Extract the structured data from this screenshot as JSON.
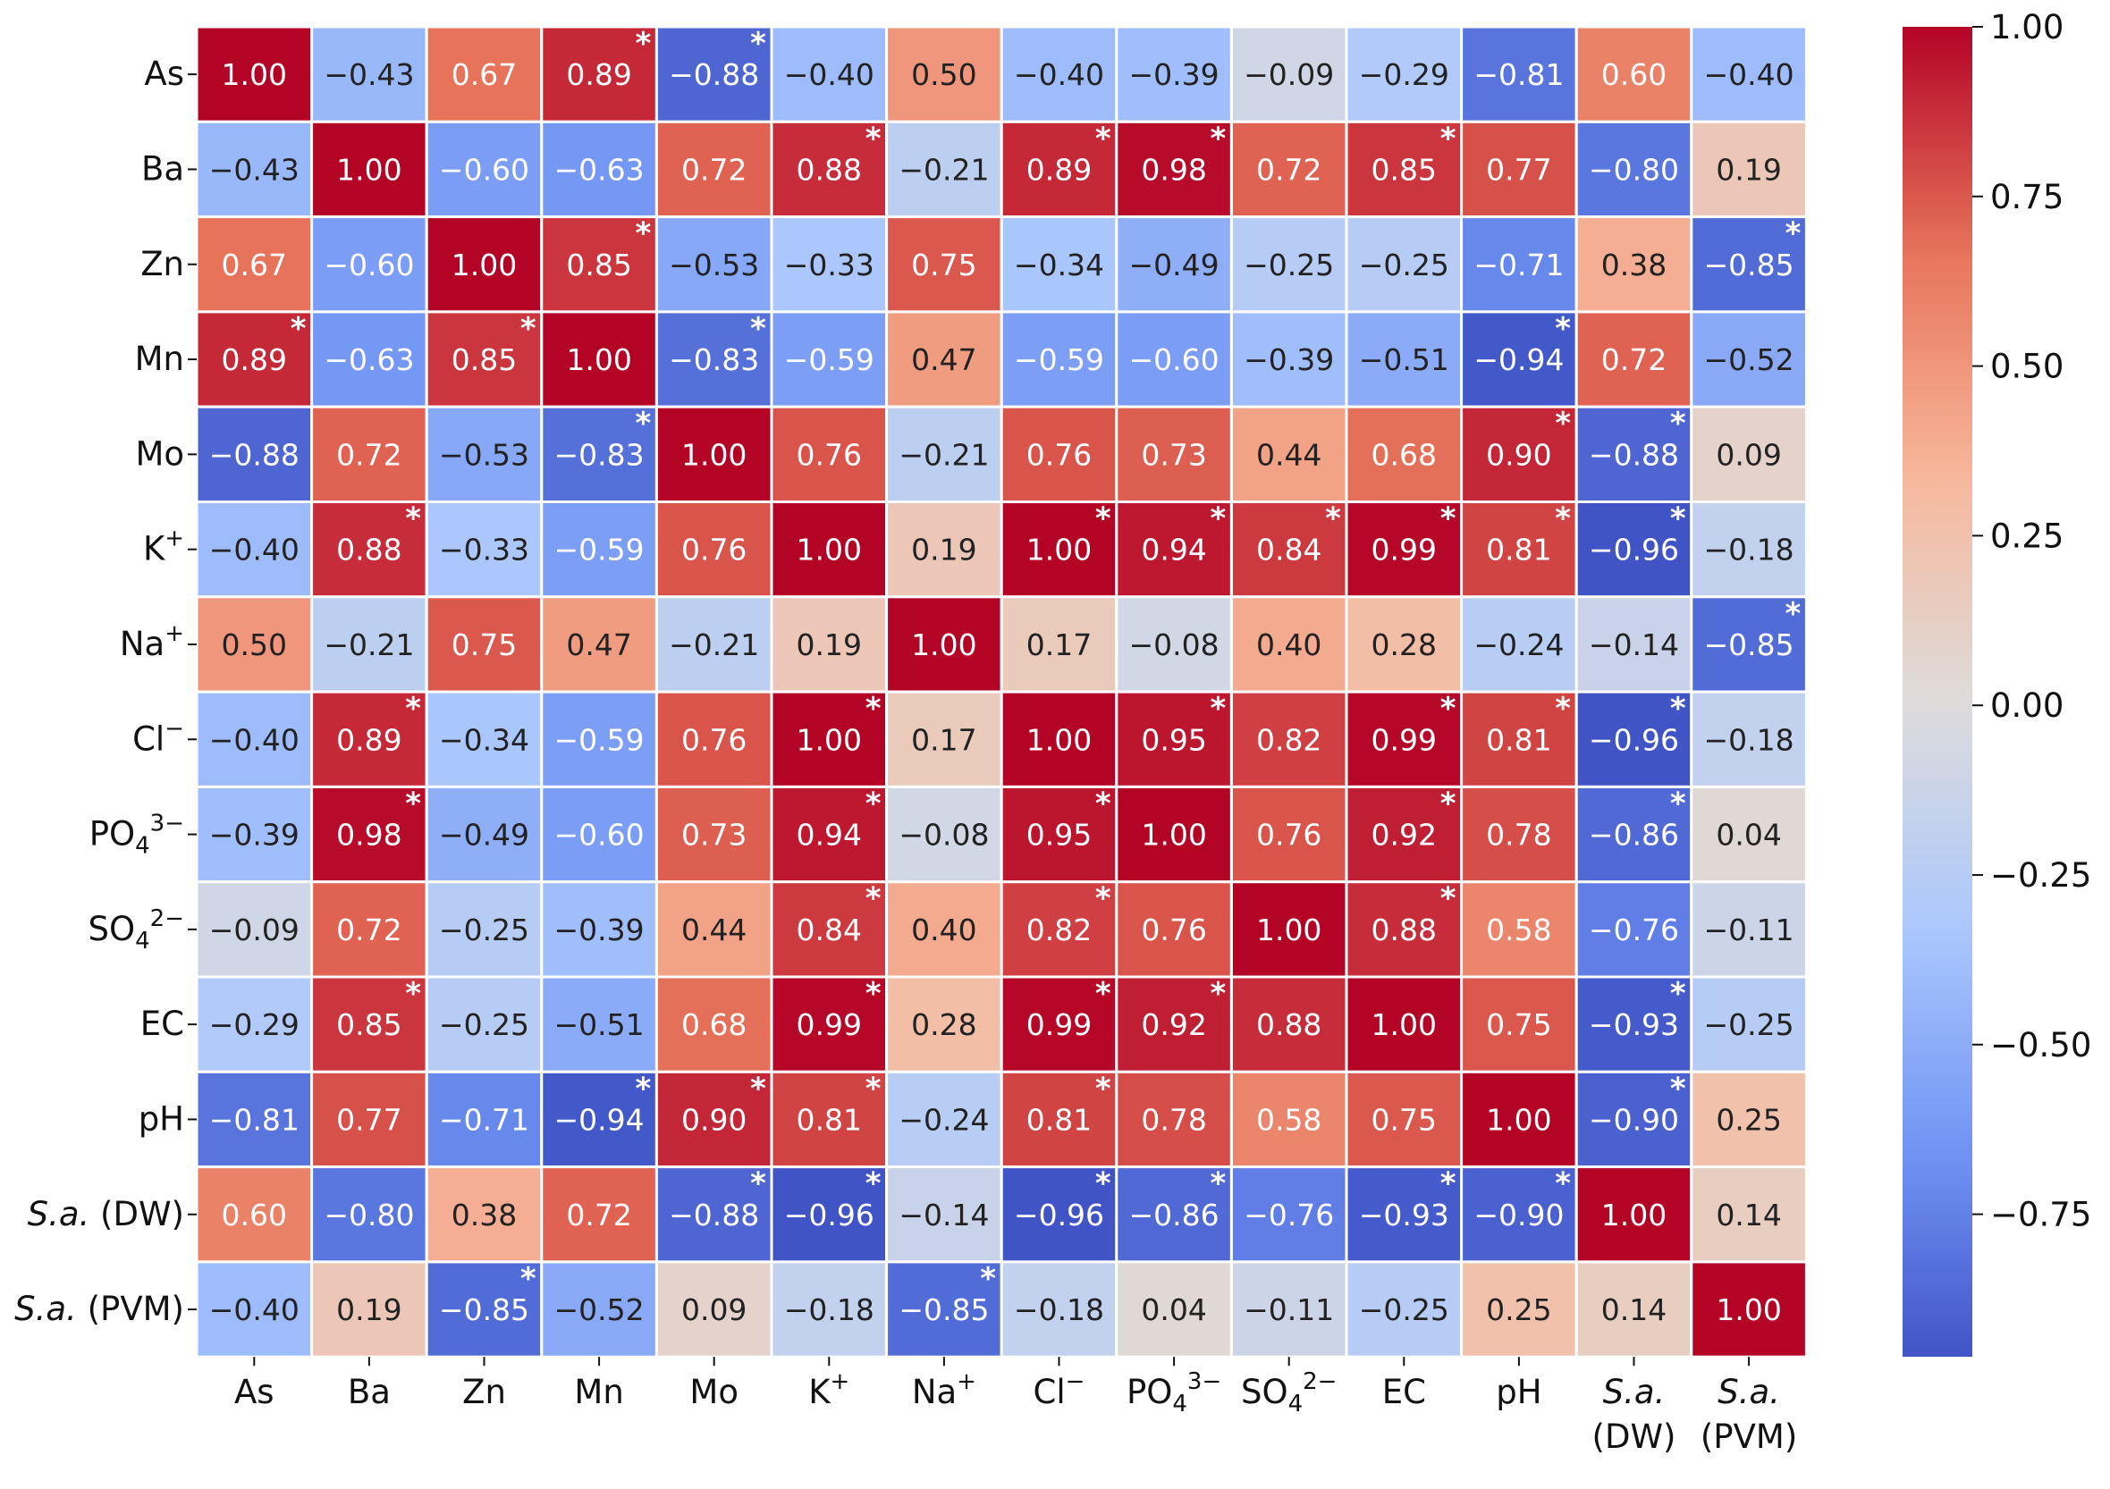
{
  "chart_data": {
    "type": "heatmap",
    "title": "",
    "xlabel": "",
    "ylabel": "",
    "row_labels": [
      {
        "base": "As",
        "sup": "",
        "sub": ""
      },
      {
        "base": "Ba",
        "sup": "",
        "sub": ""
      },
      {
        "base": "Zn",
        "sup": "",
        "sub": ""
      },
      {
        "base": "Mn",
        "sup": "",
        "sub": ""
      },
      {
        "base": "Mo",
        "sup": "",
        "sub": ""
      },
      {
        "base": "K",
        "sup": "+",
        "sub": ""
      },
      {
        "base": "Na",
        "sup": "+",
        "sub": ""
      },
      {
        "base": "Cl",
        "sup": "−",
        "sub": ""
      },
      {
        "base": "PO",
        "sub": "4",
        "sup": "3−"
      },
      {
        "base": "SO",
        "sub": "4",
        "sup": "2−"
      },
      {
        "base": "EC",
        "sup": "",
        "sub": ""
      },
      {
        "base": "pH",
        "sup": "",
        "sub": ""
      },
      {
        "italic": "S.a.",
        "rest": " (DW)"
      },
      {
        "italic": "S.a.",
        "rest": " (PVM)"
      }
    ],
    "col_labels": [
      {
        "base": "As",
        "sup": "",
        "sub": ""
      },
      {
        "base": "Ba",
        "sup": "",
        "sub": ""
      },
      {
        "base": "Zn",
        "sup": "",
        "sub": ""
      },
      {
        "base": "Mn",
        "sup": "",
        "sub": ""
      },
      {
        "base": "Mo",
        "sup": "",
        "sub": ""
      },
      {
        "base": "K",
        "sup": "+",
        "sub": ""
      },
      {
        "base": "Na",
        "sup": "+",
        "sub": ""
      },
      {
        "base": "Cl",
        "sup": "−",
        "sub": ""
      },
      {
        "base": "PO",
        "sub": "4",
        "sup": "3−"
      },
      {
        "base": "SO",
        "sub": "4",
        "sup": "2−"
      },
      {
        "base": "EC",
        "sup": "",
        "sub": ""
      },
      {
        "base": "pH",
        "sup": "",
        "sub": ""
      },
      {
        "italic": "S.a.",
        "line2": "(DW)"
      },
      {
        "italic": "S.a.",
        "line2": "(PVM)"
      }
    ],
    "values": [
      [
        1.0,
        -0.43,
        0.67,
        0.89,
        -0.88,
        -0.4,
        0.5,
        -0.4,
        -0.39,
        -0.09,
        -0.29,
        -0.81,
        0.6,
        -0.4
      ],
      [
        -0.43,
        1.0,
        -0.6,
        -0.63,
        0.72,
        0.88,
        -0.21,
        0.89,
        0.98,
        0.72,
        0.85,
        0.77,
        -0.8,
        0.19
      ],
      [
        0.67,
        -0.6,
        1.0,
        0.85,
        -0.53,
        -0.33,
        0.75,
        -0.34,
        -0.49,
        -0.25,
        -0.25,
        -0.71,
        0.38,
        -0.85
      ],
      [
        0.89,
        -0.63,
        0.85,
        1.0,
        -0.83,
        -0.59,
        0.47,
        -0.59,
        -0.6,
        -0.39,
        -0.51,
        -0.94,
        0.72,
        -0.52
      ],
      [
        -0.88,
        0.72,
        -0.53,
        -0.83,
        1.0,
        0.76,
        -0.21,
        0.76,
        0.73,
        0.44,
        0.68,
        0.9,
        -0.88,
        0.09
      ],
      [
        -0.4,
        0.88,
        -0.33,
        -0.59,
        0.76,
        1.0,
        0.19,
        1.0,
        0.94,
        0.84,
        0.99,
        0.81,
        -0.96,
        -0.18
      ],
      [
        0.5,
        -0.21,
        0.75,
        0.47,
        -0.21,
        0.19,
        1.0,
        0.17,
        -0.08,
        0.4,
        0.28,
        -0.24,
        -0.14,
        -0.85
      ],
      [
        -0.4,
        0.89,
        -0.34,
        -0.59,
        0.76,
        1.0,
        0.17,
        1.0,
        0.95,
        0.82,
        0.99,
        0.81,
        -0.96,
        -0.18
      ],
      [
        -0.39,
        0.98,
        -0.49,
        -0.6,
        0.73,
        0.94,
        -0.08,
        0.95,
        1.0,
        0.76,
        0.92,
        0.78,
        -0.86,
        0.04
      ],
      [
        -0.09,
        0.72,
        -0.25,
        -0.39,
        0.44,
        0.84,
        0.4,
        0.82,
        0.76,
        1.0,
        0.88,
        0.58,
        -0.76,
        -0.11
      ],
      [
        -0.29,
        0.85,
        -0.25,
        -0.51,
        0.68,
        0.99,
        0.28,
        0.99,
        0.92,
        0.88,
        1.0,
        0.75,
        -0.93,
        -0.25
      ],
      [
        -0.81,
        0.77,
        -0.71,
        -0.94,
        0.9,
        0.81,
        -0.24,
        0.81,
        0.78,
        0.58,
        0.75,
        1.0,
        -0.9,
        0.25
      ],
      [
        0.6,
        -0.8,
        0.38,
        0.72,
        -0.88,
        -0.96,
        -0.14,
        -0.96,
        -0.86,
        -0.76,
        -0.93,
        -0.9,
        1.0,
        0.14
      ],
      [
        -0.4,
        0.19,
        -0.85,
        -0.52,
        0.09,
        -0.18,
        -0.85,
        -0.18,
        0.04,
        -0.11,
        -0.25,
        0.25,
        0.14,
        1.0
      ]
    ],
    "significance_marker": "*",
    "significant_cells": [
      [
        0,
        3
      ],
      [
        0,
        4
      ],
      [
        1,
        5
      ],
      [
        1,
        7
      ],
      [
        1,
        8
      ],
      [
        1,
        10
      ],
      [
        2,
        3
      ],
      [
        2,
        13
      ],
      [
        3,
        0
      ],
      [
        3,
        2
      ],
      [
        3,
        4
      ],
      [
        3,
        11
      ],
      [
        4,
        3
      ],
      [
        4,
        11
      ],
      [
        4,
        12
      ],
      [
        5,
        1
      ],
      [
        5,
        7
      ],
      [
        5,
        8
      ],
      [
        5,
        9
      ],
      [
        5,
        10
      ],
      [
        5,
        11
      ],
      [
        5,
        12
      ],
      [
        6,
        13
      ],
      [
        7,
        1
      ],
      [
        7,
        5
      ],
      [
        7,
        8
      ],
      [
        7,
        10
      ],
      [
        7,
        11
      ],
      [
        7,
        12
      ],
      [
        8,
        1
      ],
      [
        8,
        5
      ],
      [
        8,
        7
      ],
      [
        8,
        10
      ],
      [
        8,
        12
      ],
      [
        9,
        5
      ],
      [
        9,
        7
      ],
      [
        9,
        10
      ],
      [
        10,
        1
      ],
      [
        10,
        5
      ],
      [
        10,
        7
      ],
      [
        10,
        8
      ],
      [
        10,
        12
      ],
      [
        11,
        3
      ],
      [
        11,
        4
      ],
      [
        11,
        5
      ],
      [
        11,
        7
      ],
      [
        11,
        12
      ],
      [
        12,
        4
      ],
      [
        12,
        5
      ],
      [
        12,
        7
      ],
      [
        12,
        8
      ],
      [
        12,
        10
      ],
      [
        12,
        11
      ],
      [
        13,
        2
      ],
      [
        13,
        6
      ]
    ],
    "colormap": "coolwarm",
    "colormap_stops": [
      "#3b4cc0",
      "#6f92f3",
      "#aac7fd",
      "#dddcdc",
      "#f7b89c",
      "#e7745b",
      "#b40426"
    ],
    "value_range": [
      -1.0,
      1.0
    ],
    "colorbar_ticks": [
      1.0,
      0.75,
      0.5,
      0.25,
      0.0,
      -0.25,
      -0.5,
      -0.75
    ],
    "colorbar_tick_labels": [
      "1.00",
      "0.75",
      "0.50",
      "0.25",
      "0.00",
      "−0.25",
      "−0.50",
      "−0.75"
    ],
    "colorbar_range": [
      -0.96,
      1.0
    ],
    "legend_position": "right"
  }
}
